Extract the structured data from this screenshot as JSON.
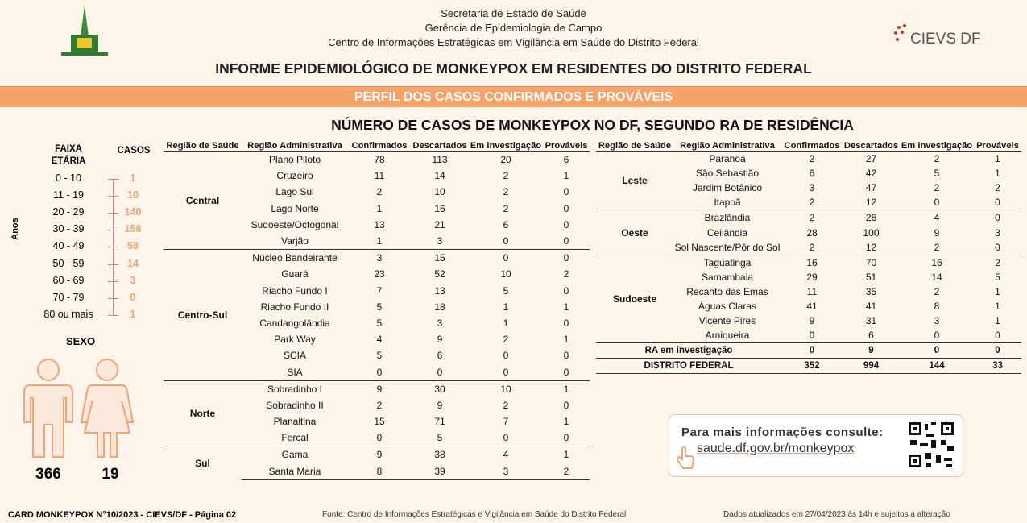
{
  "header": {
    "lines": [
      "Secretaria de Estado de Saúde",
      "Gerência de Epidemiologia de Campo",
      "Centro de Informações Estratégicas em Vigilância em Saúde do Distrito Federal"
    ],
    "logo_text": "CIEVS DF",
    "title": "INFORME EPIDEMIOLÓGICO DE MONKEYPOX EM RESIDENTES DO DISTRITO FEDERAL"
  },
  "banner": "PERFIL DOS CASOS CONFIRMADOS E PROVÁVEIS",
  "table_title": "NÚMERO DE CASOS DE MONKEYPOX NO DF, SEGUNDO RA DE RESIDÊNCIA",
  "age": {
    "headers": [
      "FAIXA ETÁRIA",
      "CASOS"
    ],
    "axis_label": "Anos",
    "rows": [
      [
        "0 - 10",
        1
      ],
      [
        "11 - 19",
        10
      ],
      [
        "20 - 29",
        140
      ],
      [
        "30 - 39",
        158
      ],
      [
        "40 - 49",
        58
      ],
      [
        "50 - 59",
        14
      ],
      [
        "60 - 69",
        3
      ],
      [
        "70 - 79",
        0
      ],
      [
        "80 ou mais",
        1
      ]
    ]
  },
  "sex": {
    "title": "SEXO",
    "values": [
      366,
      19
    ]
  },
  "tables": [
    {
      "columns": [
        "Região de Saúde",
        "Região Administrativa",
        "Confirmados",
        "Descartados",
        "Em investigação",
        "Prováveis"
      ],
      "groups": [
        {
          "region": "Central",
          "rows": [
            {
              "name": "Plano Piloto",
              "values": [
                78,
                113,
                20,
                6
              ]
            },
            {
              "name": "Cruzeiro",
              "values": [
                11,
                14,
                2,
                1
              ]
            },
            {
              "name": "Lago Sul",
              "values": [
                2,
                10,
                2,
                0
              ]
            },
            {
              "name": "Lago Norte",
              "values": [
                1,
                16,
                2,
                0
              ]
            },
            {
              "name": "Sudoeste/Octogonal",
              "values": [
                13,
                21,
                6,
                0
              ]
            },
            {
              "name": "Varjão",
              "values": [
                1,
                3,
                0,
                0
              ]
            }
          ]
        },
        {
          "region": "Centro-Sul",
          "rows": [
            {
              "name": "Núcleo Bandeirante",
              "values": [
                3,
                15,
                0,
                0
              ]
            },
            {
              "name": "Guará",
              "values": [
                23,
                52,
                10,
                2
              ]
            },
            {
              "name": "Riacho Fundo I",
              "values": [
                7,
                13,
                5,
                0
              ]
            },
            {
              "name": "Riacho Fundo II",
              "values": [
                5,
                18,
                1,
                1
              ]
            },
            {
              "name": "Candangolândia",
              "values": [
                5,
                3,
                1,
                0
              ]
            },
            {
              "name": "Park Way",
              "values": [
                4,
                9,
                2,
                1
              ]
            },
            {
              "name": "SCIA",
              "values": [
                5,
                6,
                0,
                0
              ]
            },
            {
              "name": "SIA",
              "values": [
                0,
                0,
                0,
                0
              ]
            }
          ]
        },
        {
          "region": "Norte",
          "rows": [
            {
              "name": "Sobradinho I",
              "values": [
                9,
                30,
                10,
                1
              ]
            },
            {
              "name": "Sobradinho II",
              "values": [
                2,
                9,
                2,
                0
              ]
            },
            {
              "name": "Planaltina",
              "values": [
                15,
                71,
                7,
                1
              ]
            },
            {
              "name": "Fercal",
              "values": [
                0,
                5,
                0,
                0
              ]
            }
          ]
        },
        {
          "region": "Sul",
          "rows": [
            {
              "name": "Gama",
              "values": [
                9,
                38,
                4,
                1
              ]
            },
            {
              "name": "Santa Maria",
              "values": [
                8,
                39,
                3,
                2
              ]
            }
          ]
        }
      ]
    },
    {
      "columns": [
        "Região de Saúde",
        "Região Administrativa",
        "Confirmados",
        "Descartados",
        "Em investigação",
        "Prováveis"
      ],
      "groups": [
        {
          "region": "Leste",
          "rows": [
            {
              "name": "Paranoá",
              "values": [
                2,
                27,
                2,
                1
              ]
            },
            {
              "name": "São Sebastião",
              "values": [
                6,
                42,
                5,
                1
              ]
            },
            {
              "name": "Jardim Botânico",
              "values": [
                3,
                47,
                2,
                2
              ]
            },
            {
              "name": "Itapoã",
              "values": [
                2,
                12,
                0,
                0
              ]
            }
          ]
        },
        {
          "region": "Oeste",
          "rows": [
            {
              "name": "Brazlândia",
              "values": [
                2,
                26,
                4,
                0
              ]
            },
            {
              "name": "Ceilândia",
              "values": [
                28,
                100,
                9,
                3
              ]
            },
            {
              "name": "Sol Nascente/Pôr do Sol",
              "values": [
                2,
                12,
                2,
                0
              ]
            }
          ]
        },
        {
          "region": "Sudoeste",
          "rows": [
            {
              "name": "Taguatinga",
              "values": [
                16,
                70,
                16,
                2
              ]
            },
            {
              "name": "Samambaia",
              "values": [
                29,
                51,
                14,
                5
              ]
            },
            {
              "name": "Recanto das Emas",
              "values": [
                11,
                35,
                2,
                1
              ]
            },
            {
              "name": "Águas Claras",
              "values": [
                41,
                41,
                8,
                1
              ]
            },
            {
              "name": "Vicente Pires",
              "values": [
                9,
                31,
                3,
                1
              ]
            },
            {
              "name": "Arniqueira",
              "values": [
                0,
                6,
                0,
                0
              ]
            }
          ]
        }
      ],
      "totals": [
        {
          "label": "RA em investigação",
          "values": [
            0,
            9,
            0,
            0
          ]
        },
        {
          "label": "DISTRITO FEDERAL",
          "values": [
            352,
            994,
            144,
            33
          ]
        }
      ]
    }
  ],
  "info": {
    "text": "Para mais informações consulte:",
    "link": "saude.df.gov.br/monkeypox"
  },
  "footer": {
    "card": "CARD MONKEYPOX N°10/2023 - CIEVS/DF - Página 02",
    "source": "Fonte: Centro de Informações Estratégicas e Vigilância em Saúde do Distrito Federal",
    "updated": "Dados atualizados em 27/04/2023 às 14h e sujeitos a alteração"
  }
}
